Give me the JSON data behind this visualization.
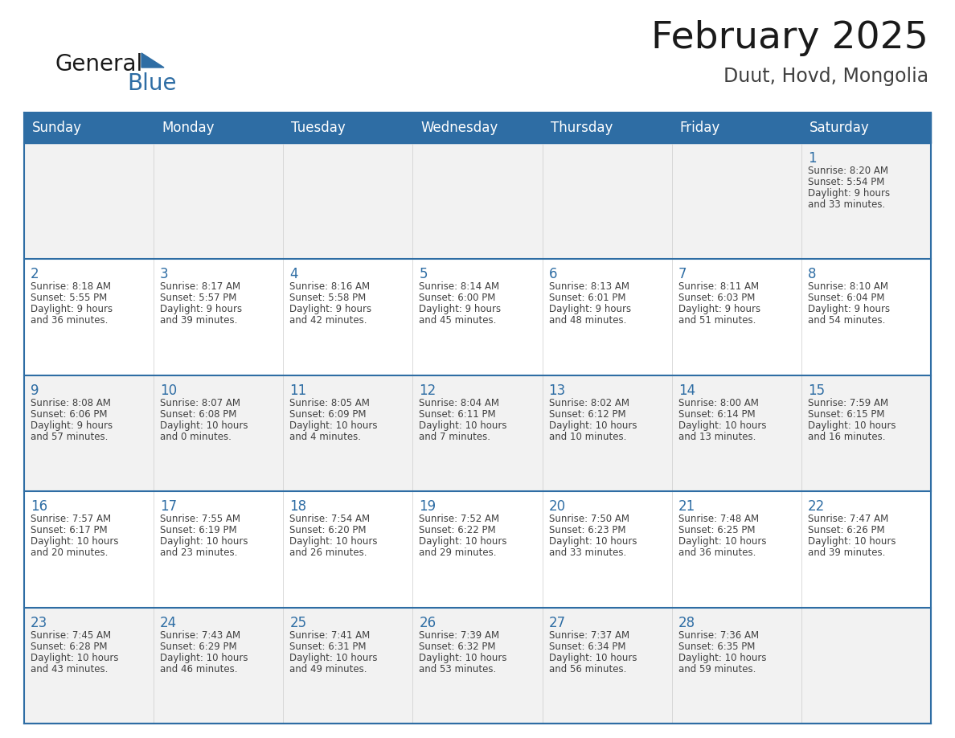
{
  "title": "February 2025",
  "subtitle": "Duut, Hovd, Mongolia",
  "header_bg": "#2E6DA4",
  "header_text_color": "#FFFFFF",
  "cell_bg_odd": "#F2F2F2",
  "cell_bg_even": "#FFFFFF",
  "day_number_color": "#2E6DA4",
  "info_text_color": "#404040",
  "border_color": "#2E6DA4",
  "days_of_week": [
    "Sunday",
    "Monday",
    "Tuesday",
    "Wednesday",
    "Thursday",
    "Friday",
    "Saturday"
  ],
  "weeks": [
    [
      {
        "day": null,
        "info": ""
      },
      {
        "day": null,
        "info": ""
      },
      {
        "day": null,
        "info": ""
      },
      {
        "day": null,
        "info": ""
      },
      {
        "day": null,
        "info": ""
      },
      {
        "day": null,
        "info": ""
      },
      {
        "day": 1,
        "info": "Sunrise: 8:20 AM\nSunset: 5:54 PM\nDaylight: 9 hours\nand 33 minutes."
      }
    ],
    [
      {
        "day": 2,
        "info": "Sunrise: 8:18 AM\nSunset: 5:55 PM\nDaylight: 9 hours\nand 36 minutes."
      },
      {
        "day": 3,
        "info": "Sunrise: 8:17 AM\nSunset: 5:57 PM\nDaylight: 9 hours\nand 39 minutes."
      },
      {
        "day": 4,
        "info": "Sunrise: 8:16 AM\nSunset: 5:58 PM\nDaylight: 9 hours\nand 42 minutes."
      },
      {
        "day": 5,
        "info": "Sunrise: 8:14 AM\nSunset: 6:00 PM\nDaylight: 9 hours\nand 45 minutes."
      },
      {
        "day": 6,
        "info": "Sunrise: 8:13 AM\nSunset: 6:01 PM\nDaylight: 9 hours\nand 48 minutes."
      },
      {
        "day": 7,
        "info": "Sunrise: 8:11 AM\nSunset: 6:03 PM\nDaylight: 9 hours\nand 51 minutes."
      },
      {
        "day": 8,
        "info": "Sunrise: 8:10 AM\nSunset: 6:04 PM\nDaylight: 9 hours\nand 54 minutes."
      }
    ],
    [
      {
        "day": 9,
        "info": "Sunrise: 8:08 AM\nSunset: 6:06 PM\nDaylight: 9 hours\nand 57 minutes."
      },
      {
        "day": 10,
        "info": "Sunrise: 8:07 AM\nSunset: 6:08 PM\nDaylight: 10 hours\nand 0 minutes."
      },
      {
        "day": 11,
        "info": "Sunrise: 8:05 AM\nSunset: 6:09 PM\nDaylight: 10 hours\nand 4 minutes."
      },
      {
        "day": 12,
        "info": "Sunrise: 8:04 AM\nSunset: 6:11 PM\nDaylight: 10 hours\nand 7 minutes."
      },
      {
        "day": 13,
        "info": "Sunrise: 8:02 AM\nSunset: 6:12 PM\nDaylight: 10 hours\nand 10 minutes."
      },
      {
        "day": 14,
        "info": "Sunrise: 8:00 AM\nSunset: 6:14 PM\nDaylight: 10 hours\nand 13 minutes."
      },
      {
        "day": 15,
        "info": "Sunrise: 7:59 AM\nSunset: 6:15 PM\nDaylight: 10 hours\nand 16 minutes."
      }
    ],
    [
      {
        "day": 16,
        "info": "Sunrise: 7:57 AM\nSunset: 6:17 PM\nDaylight: 10 hours\nand 20 minutes."
      },
      {
        "day": 17,
        "info": "Sunrise: 7:55 AM\nSunset: 6:19 PM\nDaylight: 10 hours\nand 23 minutes."
      },
      {
        "day": 18,
        "info": "Sunrise: 7:54 AM\nSunset: 6:20 PM\nDaylight: 10 hours\nand 26 minutes."
      },
      {
        "day": 19,
        "info": "Sunrise: 7:52 AM\nSunset: 6:22 PM\nDaylight: 10 hours\nand 29 minutes."
      },
      {
        "day": 20,
        "info": "Sunrise: 7:50 AM\nSunset: 6:23 PM\nDaylight: 10 hours\nand 33 minutes."
      },
      {
        "day": 21,
        "info": "Sunrise: 7:48 AM\nSunset: 6:25 PM\nDaylight: 10 hours\nand 36 minutes."
      },
      {
        "day": 22,
        "info": "Sunrise: 7:47 AM\nSunset: 6:26 PM\nDaylight: 10 hours\nand 39 minutes."
      }
    ],
    [
      {
        "day": 23,
        "info": "Sunrise: 7:45 AM\nSunset: 6:28 PM\nDaylight: 10 hours\nand 43 minutes."
      },
      {
        "day": 24,
        "info": "Sunrise: 7:43 AM\nSunset: 6:29 PM\nDaylight: 10 hours\nand 46 minutes."
      },
      {
        "day": 25,
        "info": "Sunrise: 7:41 AM\nSunset: 6:31 PM\nDaylight: 10 hours\nand 49 minutes."
      },
      {
        "day": 26,
        "info": "Sunrise: 7:39 AM\nSunset: 6:32 PM\nDaylight: 10 hours\nand 53 minutes."
      },
      {
        "day": 27,
        "info": "Sunrise: 7:37 AM\nSunset: 6:34 PM\nDaylight: 10 hours\nand 56 minutes."
      },
      {
        "day": 28,
        "info": "Sunrise: 7:36 AM\nSunset: 6:35 PM\nDaylight: 10 hours\nand 59 minutes."
      },
      {
        "day": null,
        "info": ""
      }
    ]
  ],
  "logo_text1": "General",
  "logo_text2": "Blue",
  "logo_text1_color": "#1a1a1a",
  "logo_text2_color": "#2E6DA4",
  "logo_triangle_color": "#2E6DA4"
}
